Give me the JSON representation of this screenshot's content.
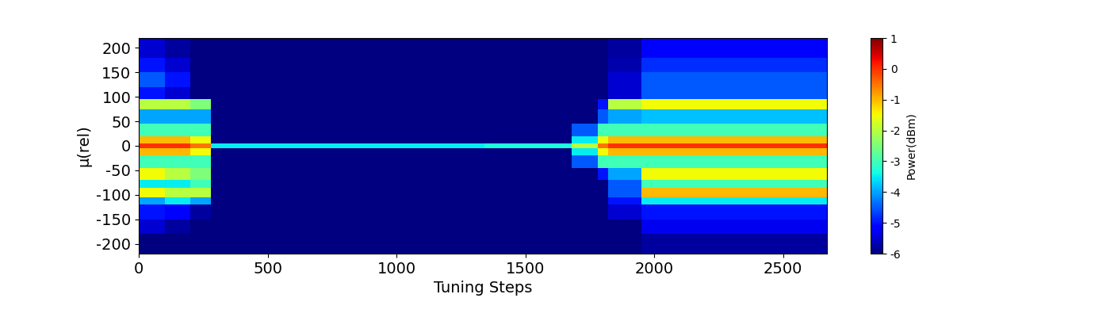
{
  "chart_data": {
    "type": "heatmap",
    "x_label": "Tuning Steps",
    "y_label": "μ(rel)",
    "color": "jet",
    "x_edges": [
      0,
      100,
      200,
      280,
      500,
      1000,
      1340,
      1680,
      1780,
      1820,
      1950,
      2100,
      2300,
      2500,
      2670
    ],
    "y_edges": [
      -220,
      -180,
      -150,
      -120,
      -105,
      -85,
      -70,
      -45,
      -20,
      -5,
      5,
      20,
      45,
      75,
      95,
      120,
      150,
      180,
      220
    ],
    "cells": [
      [
        -6,
        -6,
        -6,
        -6,
        -6,
        -6,
        -6,
        -6,
        -6,
        -6,
        -5.8,
        -5.8,
        -5.8,
        -5.8
      ],
      [
        -5.5,
        -5.8,
        -6,
        -6,
        -6,
        -6,
        -6,
        -6,
        -6,
        -6,
        -5.3,
        -5.3,
        -5.3,
        -5.3
      ],
      [
        -5,
        -5.2,
        -5.8,
        -6,
        -6,
        -6,
        -6,
        -6,
        -6,
        -5.5,
        -5,
        -5,
        -5,
        -5
      ],
      [
        -4,
        -3.5,
        -4,
        -6,
        -6,
        -6,
        -6,
        -6,
        -6,
        -5,
        -3.5,
        -3.5,
        -3.5,
        -3.5
      ],
      [
        -1.5,
        -2,
        -2,
        -6,
        -6,
        -6,
        -6,
        -6,
        -6,
        -4.5,
        -1,
        -1,
        -1,
        -1
      ],
      [
        -3.5,
        -3.5,
        -3,
        -6,
        -6,
        -6,
        -6,
        -6,
        -6,
        -4.5,
        -3,
        -3,
        -3,
        -3
      ],
      [
        -1.5,
        -2,
        -2.5,
        -6,
        -6,
        -6,
        -6,
        -6,
        -5,
        -4,
        -1.5,
        -1.5,
        -1.5,
        -1.5
      ],
      [
        -3,
        -3,
        -3,
        -6,
        -6,
        -6,
        -6,
        -4.5,
        -3,
        -3,
        -3,
        -3,
        -3,
        -3
      ],
      [
        -1,
        -1,
        -1.5,
        -6,
        -6,
        -6,
        -6,
        -3.5,
        -1.5,
        -1,
        -1,
        -1,
        -1,
        -1
      ],
      [
        0,
        0,
        -0.5,
        -3.5,
        -3.5,
        -3.5,
        -3.3,
        -2,
        -0.5,
        0,
        0,
        0,
        0,
        0
      ],
      [
        -1,
        -1,
        -1.5,
        -6,
        -6,
        -6,
        -6,
        -3.5,
        -1.5,
        -1,
        -1,
        -1,
        -1,
        -1
      ],
      [
        -3,
        -3,
        -3,
        -6,
        -6,
        -6,
        -6,
        -4.5,
        -3,
        -3,
        -3,
        -3,
        -3,
        -3
      ],
      [
        -4,
        -4,
        -4,
        -6,
        -6,
        -6,
        -6,
        -6,
        -4.5,
        -4,
        -3.8,
        -3.8,
        -3.8,
        -3.8
      ],
      [
        -2,
        -2,
        -2.5,
        -6,
        -6,
        -6,
        -6,
        -6,
        -5,
        -2,
        -1.5,
        -1.5,
        -1.5,
        -1.5
      ],
      [
        -5,
        -5.5,
        -6,
        -6,
        -6,
        -6,
        -6,
        -6,
        -6,
        -5.5,
        -4.5,
        -4.5,
        -4.5,
        -4.5
      ],
      [
        -4.5,
        -5,
        -6,
        -6,
        -6,
        -6,
        -6,
        -6,
        -6,
        -5.5,
        -4.5,
        -4.5,
        -4.5,
        -4.5
      ],
      [
        -5,
        -5.5,
        -6,
        -6,
        -6,
        -6,
        -6,
        -6,
        -6,
        -5.7,
        -4.8,
        -4.8,
        -4.8,
        -4.8
      ],
      [
        -5.5,
        -5.8,
        -6,
        -6,
        -6,
        -6,
        -6,
        -6,
        -6,
        -5.8,
        -5.2,
        -5.2,
        -5.2,
        -5.2
      ]
    ],
    "xlim": [
      0,
      2670
    ],
    "ylim": [
      -220,
      220
    ],
    "xticks": [
      0,
      500,
      1000,
      1500,
      2000,
      2500
    ],
    "yticks": [
      -200,
      -150,
      -100,
      -50,
      0,
      50,
      100,
      150,
      200
    ],
    "colorbar_label": "Power(dBm)",
    "colorbar_range": [
      -6,
      1
    ],
    "colorbar_ticks": [
      -6,
      -5,
      -4,
      -3,
      -2,
      -1,
      0,
      1
    ]
  }
}
